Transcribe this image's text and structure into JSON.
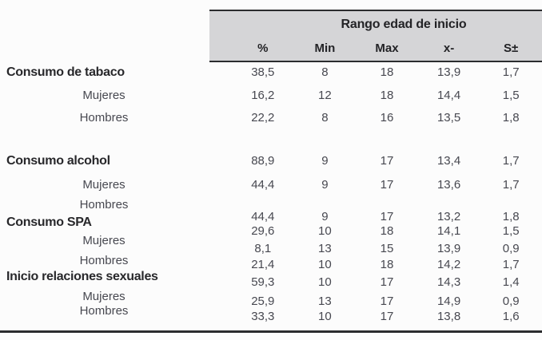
{
  "table": {
    "title": "Rango edad de inicio",
    "columns": [
      "%",
      "Min",
      "Max",
      "x-",
      "S±"
    ],
    "rows": [
      {
        "label": "Consumo de tabaco",
        "level": "section",
        "values": [
          "38,5",
          "8",
          "18",
          "13,9",
          "1,7"
        ]
      },
      {
        "label": "Mujeres",
        "level": "sub",
        "values": [
          "16,2",
          "12",
          "18",
          "14,4",
          "1,5"
        ]
      },
      {
        "label": "Hombres",
        "level": "sub",
        "values": [
          "22,2",
          "8",
          "16",
          "13,5",
          "1,8"
        ]
      },
      {
        "label": "Consumo alcohol",
        "level": "section",
        "values": [
          "88,9",
          "9",
          "17",
          "13,4",
          "1,7"
        ]
      },
      {
        "label": "Mujeres",
        "level": "sub",
        "values": [
          "44,4",
          "9",
          "17",
          "13,6",
          "1,7"
        ]
      },
      {
        "label": "Hombres",
        "level": "sub",
        "values": [
          "44,4",
          "9",
          "17",
          "13,2",
          "1,8"
        ]
      },
      {
        "label": "Consumo SPA",
        "level": "section",
        "values": [
          "29,6",
          "10",
          "18",
          "14,1",
          "1,5"
        ]
      },
      {
        "label": "Mujeres",
        "level": "sub",
        "values": [
          "8,1",
          "13",
          "15",
          "13,9",
          "0,9"
        ]
      },
      {
        "label": "Hombres",
        "level": "sub",
        "values": [
          "21,4",
          "10",
          "18",
          "14,2",
          "1,7"
        ]
      },
      {
        "label": "Inicio relaciones sexuales",
        "level": "section",
        "values": [
          "59,3",
          "10",
          "17",
          "14,3",
          "1,4"
        ]
      },
      {
        "label": "Mujeres",
        "level": "sub",
        "values": [
          "25,9",
          "13",
          "17",
          "14,9",
          "0,9"
        ]
      },
      {
        "label": "Hombres",
        "level": "sub",
        "values": [
          "33,3",
          "10",
          "17",
          "13,8",
          "1,6"
        ]
      }
    ]
  },
  "colors": {
    "header_background": "#d5d5d7",
    "rule": "#2b2c2e",
    "section_text": "#28282b",
    "value_text": "#474850"
  }
}
